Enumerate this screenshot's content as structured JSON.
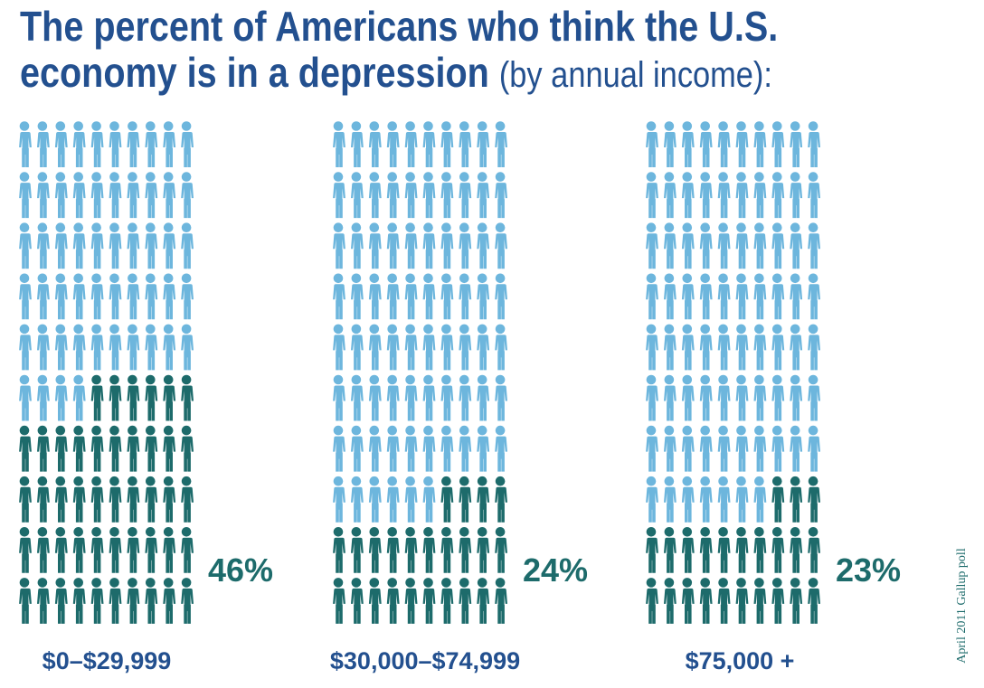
{
  "title": {
    "line1": "The percent of Americans who think the U.S.",
    "line2": "economy is in a depression",
    "line2_sub": "(by annual income):"
  },
  "source": "April 2011 Gallup poll",
  "chart_data": {
    "type": "pictogram",
    "icon": "person-icon",
    "icons_per_group": 100,
    "grid": {
      "columns": 10,
      "rows": 10
    },
    "categories": [
      "$0–$29,999",
      "$30,000–$74,999",
      "$75,000 +"
    ],
    "values": [
      46,
      24,
      23
    ],
    "value_labels": [
      "46%",
      "24%",
      "23%"
    ],
    "unit": "%",
    "colors": {
      "highlighted": "#1d6b6b",
      "rest": "#6db6dd",
      "title": "#23508f"
    }
  }
}
